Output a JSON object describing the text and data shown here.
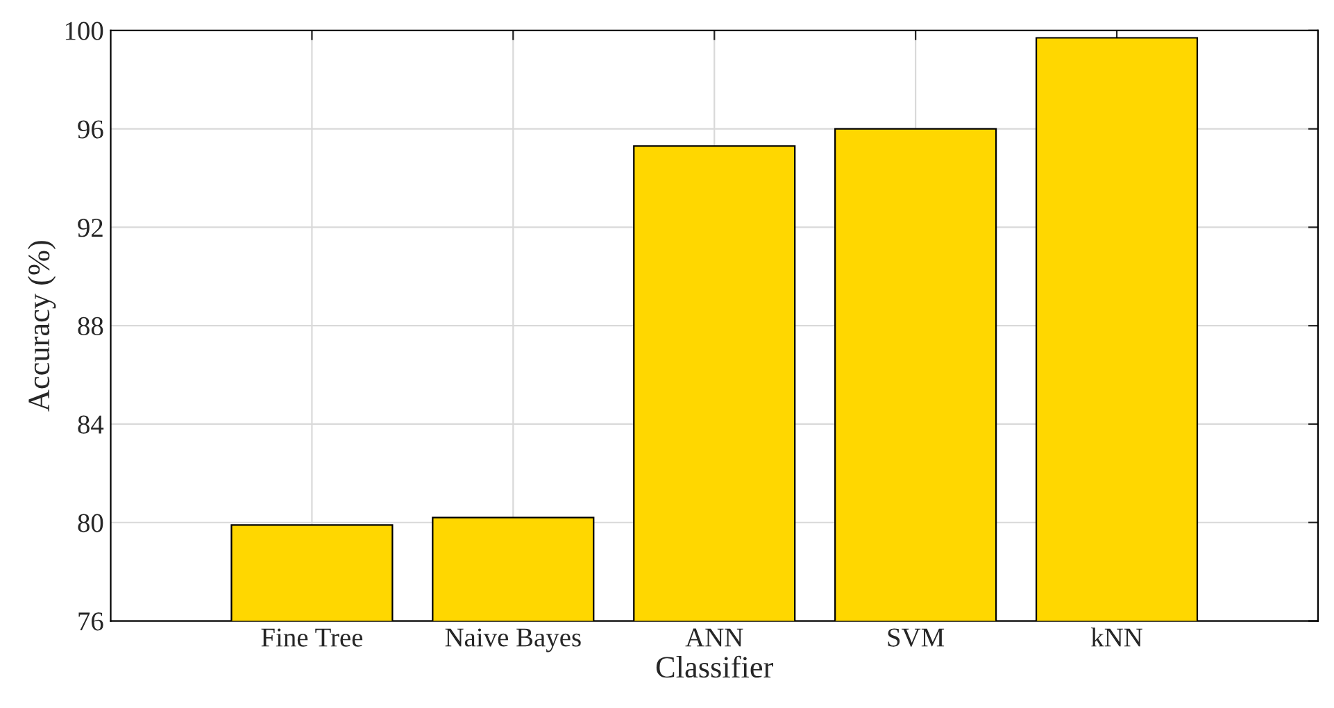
{
  "chart_data": {
    "type": "bar",
    "xlabel": "Classifier",
    "ylabel": "Accuracy (%)",
    "categories": [
      "Fine Tree",
      "Naive Bayes",
      "ANN",
      "SVM",
      "kNN"
    ],
    "values": [
      79.9,
      80.2,
      95.3,
      96.0,
      99.7
    ],
    "color": "#ffd700",
    "ylim": [
      76,
      100
    ],
    "yticks": [
      76,
      80,
      84,
      88,
      92,
      96,
      100
    ],
    "grid": true
  }
}
